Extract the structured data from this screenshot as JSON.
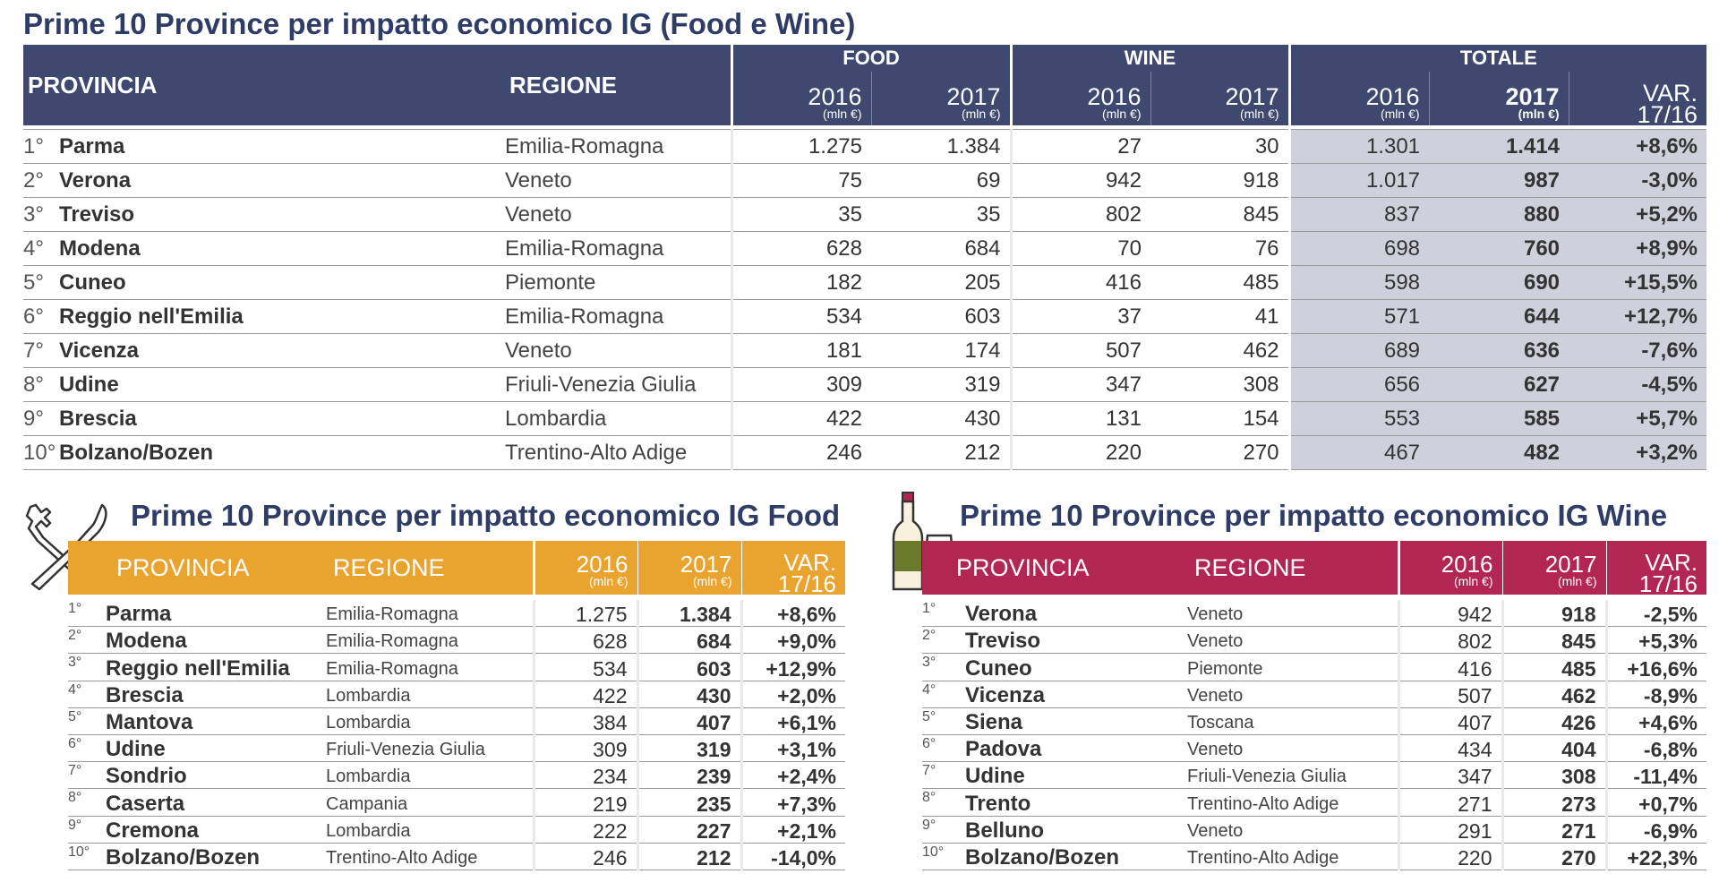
{
  "main": {
    "title": "Prime 10 Province per impatto economico IG (Food e Wine)",
    "headers": {
      "provincia": "PROVINCIA",
      "regione": "REGIONE",
      "food": "FOOD",
      "wine": "WINE",
      "totale": "TOTALE",
      "y2016": "2016",
      "y2017": "2017",
      "unit": "(mln €)",
      "var1": "VAR.",
      "var2": "17/16"
    },
    "rows": [
      {
        "rank": "1°",
        "prov": "Parma",
        "reg": "Emilia-Romagna",
        "f16": "1.275",
        "f17": "1.384",
        "w16": "27",
        "w17": "30",
        "t16": "1.301",
        "t17": "1.414",
        "var": "+8,6%"
      },
      {
        "rank": "2°",
        "prov": "Verona",
        "reg": "Veneto",
        "f16": "75",
        "f17": "69",
        "w16": "942",
        "w17": "918",
        "t16": "1.017",
        "t17": "987",
        "var": "-3,0%"
      },
      {
        "rank": "3°",
        "prov": "Treviso",
        "reg": "Veneto",
        "f16": "35",
        "f17": "35",
        "w16": "802",
        "w17": "845",
        "t16": "837",
        "t17": "880",
        "var": "+5,2%"
      },
      {
        "rank": "4°",
        "prov": "Modena",
        "reg": "Emilia-Romagna",
        "f16": "628",
        "f17": "684",
        "w16": "70",
        "w17": "76",
        "t16": "698",
        "t17": "760",
        "var": "+8,9%"
      },
      {
        "rank": "5°",
        "prov": "Cuneo",
        "reg": "Piemonte",
        "f16": "182",
        "f17": "205",
        "w16": "416",
        "w17": "485",
        "t16": "598",
        "t17": "690",
        "var": "+15,5%"
      },
      {
        "rank": "6°",
        "prov": "Reggio nell'Emilia",
        "reg": "Emilia-Romagna",
        "f16": "534",
        "f17": "603",
        "w16": "37",
        "w17": "41",
        "t16": "571",
        "t17": "644",
        "var": "+12,7%"
      },
      {
        "rank": "7°",
        "prov": "Vicenza",
        "reg": "Veneto",
        "f16": "181",
        "f17": "174",
        "w16": "507",
        "w17": "462",
        "t16": "689",
        "t17": "636",
        "var": "-7,6%"
      },
      {
        "rank": "8°",
        "prov": "Udine",
        "reg": "Friuli-Venezia Giulia",
        "f16": "309",
        "f17": "319",
        "w16": "347",
        "w17": "308",
        "t16": "656",
        "t17": "627",
        "var": "-4,5%"
      },
      {
        "rank": "9°",
        "prov": "Brescia",
        "reg": "Lombardia",
        "f16": "422",
        "f17": "430",
        "w16": "131",
        "w17": "154",
        "t16": "553",
        "t17": "585",
        "var": "+5,7%"
      },
      {
        "rank": "10°",
        "prov": "Bolzano/Bozen",
        "reg": "Trentino-Alto Adige",
        "f16": "246",
        "f17": "212",
        "w16": "220",
        "w17": "270",
        "t16": "467",
        "t17": "482",
        "var": "+3,2%"
      }
    ]
  },
  "food": {
    "title": "Prime 10 Province per impatto economico IG Food",
    "icon": "fork-knife-icon",
    "accent": "#e9a430",
    "headers": {
      "provincia": "PROVINCIA",
      "regione": "REGIONE",
      "y2016": "2016",
      "y2017": "2017",
      "unit": "(mln €)",
      "var1": "VAR.",
      "var2": "17/16"
    },
    "rows": [
      {
        "rank": "1°",
        "prov": "Parma",
        "reg": "Emilia-Romagna",
        "v16": "1.275",
        "v17": "1.384",
        "var": "+8,6%"
      },
      {
        "rank": "2°",
        "prov": "Modena",
        "reg": "Emilia-Romagna",
        "v16": "628",
        "v17": "684",
        "var": "+9,0%"
      },
      {
        "rank": "3°",
        "prov": "Reggio nell'Emilia",
        "reg": "Emilia-Romagna",
        "v16": "534",
        "v17": "603",
        "var": "+12,9%"
      },
      {
        "rank": "4°",
        "prov": "Brescia",
        "reg": "Lombardia",
        "v16": "422",
        "v17": "430",
        "var": "+2,0%"
      },
      {
        "rank": "5°",
        "prov": "Mantova",
        "reg": "Lombardia",
        "v16": "384",
        "v17": "407",
        "var": "+6,1%"
      },
      {
        "rank": "6°",
        "prov": "Udine",
        "reg": "Friuli-Venezia Giulia",
        "v16": "309",
        "v17": "319",
        "var": "+3,1%"
      },
      {
        "rank": "7°",
        "prov": "Sondrio",
        "reg": "Lombardia",
        "v16": "234",
        "v17": "239",
        "var": "+2,4%"
      },
      {
        "rank": "8°",
        "prov": "Caserta",
        "reg": "Campania",
        "v16": "219",
        "v17": "235",
        "var": "+7,3%"
      },
      {
        "rank": "9°",
        "prov": "Cremona",
        "reg": "Lombardia",
        "v16": "222",
        "v17": "227",
        "var": "+2,1%"
      },
      {
        "rank": "10°",
        "prov": "Bolzano/Bozen",
        "reg": "Trentino-Alto Adige",
        "v16": "246",
        "v17": "212",
        "var": "-14,0%"
      }
    ]
  },
  "wine": {
    "title": "Prime 10 Province per impatto economico IG Wine",
    "icon": "wine-bottle-glass-icon",
    "accent": "#b12752",
    "headers": {
      "provincia": "PROVINCIA",
      "regione": "REGIONE",
      "y2016": "2016",
      "y2017": "2017",
      "unit": "(mln €)",
      "var1": "VAR.",
      "var2": "17/16"
    },
    "rows": [
      {
        "rank": "1°",
        "prov": "Verona",
        "reg": "Veneto",
        "v16": "942",
        "v17": "918",
        "var": "-2,5%"
      },
      {
        "rank": "2°",
        "prov": "Treviso",
        "reg": "Veneto",
        "v16": "802",
        "v17": "845",
        "var": "+5,3%"
      },
      {
        "rank": "3°",
        "prov": "Cuneo",
        "reg": "Piemonte",
        "v16": "416",
        "v17": "485",
        "var": "+16,6%"
      },
      {
        "rank": "4°",
        "prov": "Vicenza",
        "reg": "Veneto",
        "v16": "507",
        "v17": "462",
        "var": "-8,9%"
      },
      {
        "rank": "5°",
        "prov": "Siena",
        "reg": "Toscana",
        "v16": "407",
        "v17": "426",
        "var": "+4,6%"
      },
      {
        "rank": "6°",
        "prov": "Padova",
        "reg": "Veneto",
        "v16": "434",
        "v17": "404",
        "var": "-6,8%"
      },
      {
        "rank": "7°",
        "prov": "Udine",
        "reg": "Friuli-Venezia Giulia",
        "v16": "347",
        "v17": "308",
        "var": "-11,4%"
      },
      {
        "rank": "8°",
        "prov": "Trento",
        "reg": "Trentino-Alto Adige",
        "v16": "271",
        "v17": "273",
        "var": "+0,7%"
      },
      {
        "rank": "9°",
        "prov": "Belluno",
        "reg": "Veneto",
        "v16": "291",
        "v17": "271",
        "var": "-6,9%"
      },
      {
        "rank": "10°",
        "prov": "Bolzano/Bozen",
        "reg": "Trentino-Alto Adige",
        "v16": "220",
        "v17": "270",
        "var": "+22,3%"
      }
    ]
  }
}
